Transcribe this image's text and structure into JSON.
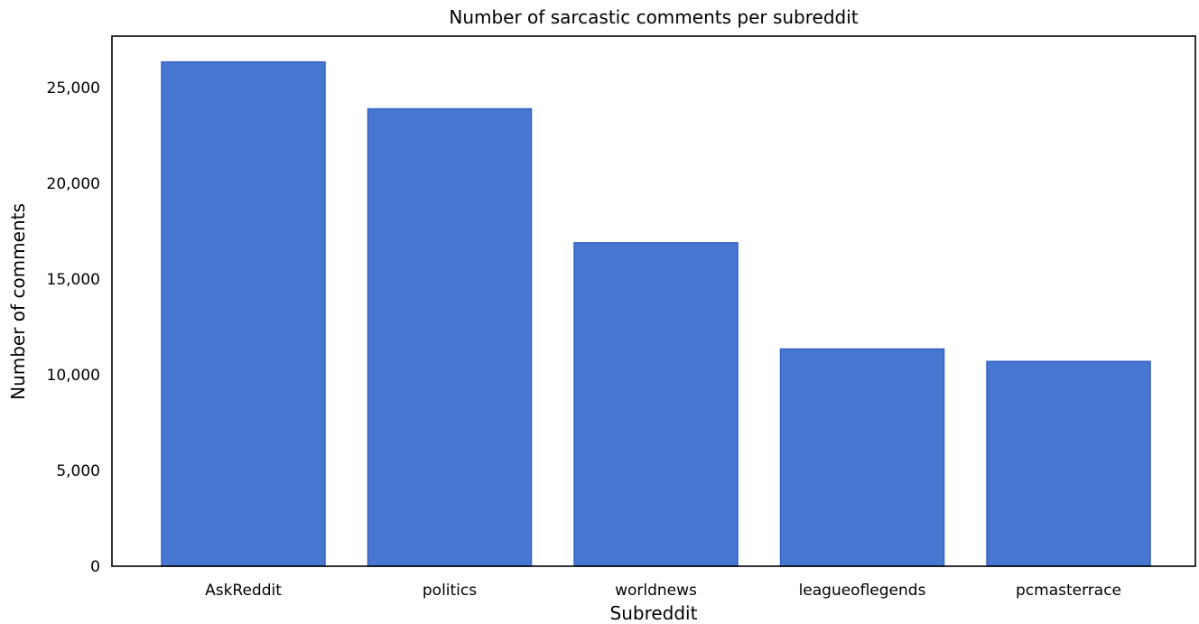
{
  "chart_data": {
    "type": "bar",
    "title": "Number of sarcastic comments per subreddit",
    "xlabel": "Subreddit",
    "ylabel": "Number of comments",
    "categories": [
      "AskReddit",
      "politics",
      "worldnews",
      "leagueoflegends",
      "pcmasterrace"
    ],
    "values": [
      26350,
      23900,
      16900,
      11350,
      10700
    ],
    "ylim": [
      0,
      27700
    ],
    "yticks": [
      0,
      5000,
      10000,
      15000,
      20000,
      25000
    ],
    "ytick_labels": [
      "0",
      "5,000",
      "10,000",
      "15,000",
      "20,000",
      "25,000"
    ],
    "grid": false,
    "legend": "none",
    "bar_color": "#4777d0",
    "bar_edge_color": "#3462c4"
  }
}
